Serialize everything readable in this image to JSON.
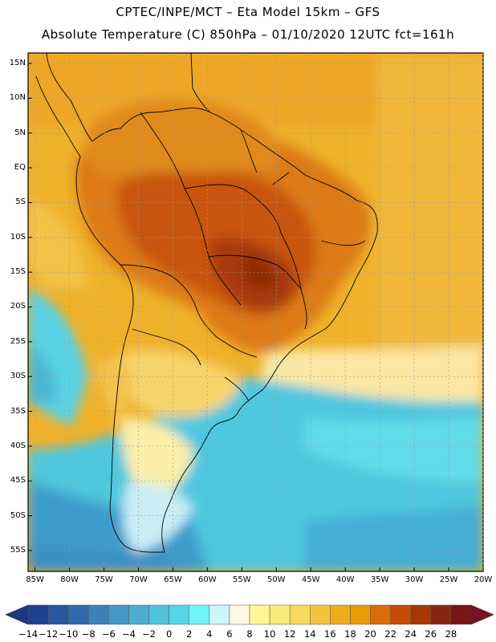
{
  "header": {
    "line1": "CPTEC/INPE/MCT –  Eta Model 15km – GFS",
    "line2": "Absolute Temperature (C) 850hPa – 01/10/2020 12UTC fct=161h"
  },
  "map": {
    "lat_labels": [
      "15N",
      "10N",
      "5N",
      "EQ",
      "5S",
      "10S",
      "15S",
      "20S",
      "25S",
      "30S",
      "35S",
      "40S",
      "45S",
      "50S",
      "55S"
    ],
    "lon_labels": [
      "85W",
      "80W",
      "75W",
      "70W",
      "65W",
      "60W",
      "55W",
      "50W",
      "45W",
      "40W",
      "35W",
      "30W",
      "25W",
      "20W"
    ],
    "lat_range": [
      -58,
      16.5
    ],
    "lon_range": [
      -86,
      -20
    ]
  },
  "colorbar": {
    "labels": [
      "-14",
      "-12",
      "-10",
      "-8",
      "-6",
      "-4",
      "-2",
      "0",
      "2",
      "4",
      "6",
      "8",
      "10",
      "12",
      "14",
      "16",
      "18",
      "20",
      "22",
      "24",
      "26",
      "28"
    ],
    "colors": [
      "#1f3f8f",
      "#2a569f",
      "#2f6aad",
      "#3b82bb",
      "#4497c6",
      "#4caccf",
      "#4fc2dc",
      "#55d6e8",
      "#6ff6f9",
      "#cdf3fb",
      "#fff8e2",
      "#fff597",
      "#fbe97a",
      "#f7da5b",
      "#f2c43d",
      "#eeae1b",
      "#e99a08",
      "#dd6a05",
      "#c84b05",
      "#a73605",
      "#86260f",
      "#7a1515"
    ],
    "under_color": "#1b3780",
    "over_color": "#7d0e28"
  }
}
